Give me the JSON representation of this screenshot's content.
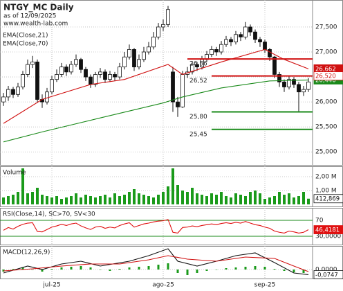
{
  "chart_data": [
    {
      "type": "candlestick",
      "title": "NTGY_MC Daily",
      "subtitle": "as of 12/09/2025",
      "source": "www.wealth-lab.com",
      "categories": [
        null,
        null,
        null,
        null,
        null,
        null,
        null,
        null,
        null,
        null,
        "jul-25",
        null,
        null,
        null,
        null,
        null,
        null,
        null,
        null,
        null,
        null,
        null,
        null,
        null,
        null,
        null,
        null,
        null,
        null,
        null,
        null,
        null,
        null,
        "ago-25",
        null,
        null,
        null,
        null,
        null,
        null,
        null,
        null,
        null,
        null,
        null,
        null,
        null,
        null,
        null,
        null,
        null,
        null,
        null,
        null,
        "sep-25",
        null,
        null,
        null,
        null,
        null,
        null,
        null,
        null,
        null
      ],
      "open": [
        26.0,
        26.1,
        26.25,
        26.15,
        26.3,
        26.55,
        26.75,
        26.8,
        26.05,
        26.0,
        26.2,
        26.45,
        26.55,
        26.7,
        26.6,
        26.75,
        26.85,
        26.65,
        26.5,
        26.35,
        26.55,
        26.6,
        26.45,
        26.55,
        26.5,
        26.7,
        26.9,
        27.05,
        26.7,
        26.85,
        27.0,
        27.1,
        27.3,
        27.5,
        27.55,
        26.6,
        26.0,
        25.9,
        26.55,
        26.6,
        26.75,
        26.7,
        26.85,
        26.95,
        27.05,
        27.0,
        27.15,
        27.25,
        27.2,
        27.35,
        27.3,
        27.5,
        27.4,
        27.25,
        27.2,
        27.05,
        26.9,
        26.55,
        26.4,
        26.3,
        26.45,
        26.35,
        26.2,
        26.25
      ],
      "high": [
        26.18,
        26.32,
        26.3,
        26.38,
        26.62,
        26.85,
        26.92,
        26.85,
        26.15,
        26.28,
        26.52,
        26.65,
        26.78,
        26.75,
        26.82,
        26.95,
        26.88,
        26.7,
        26.55,
        26.6,
        26.68,
        26.65,
        26.62,
        26.6,
        26.78,
        27.0,
        27.15,
        27.08,
        26.95,
        27.1,
        27.2,
        27.4,
        27.58,
        27.65,
        27.92,
        26.7,
        26.1,
        26.62,
        26.7,
        26.82,
        26.8,
        26.92,
        27.02,
        27.12,
        27.1,
        27.22,
        27.32,
        27.3,
        27.42,
        27.4,
        27.6,
        27.55,
        27.45,
        27.3,
        27.25,
        27.08,
        26.92,
        26.6,
        26.45,
        26.52,
        26.5,
        26.4,
        26.32,
        26.48
      ],
      "low": [
        25.92,
        26.02,
        26.08,
        26.1,
        26.25,
        26.5,
        26.68,
        25.98,
        25.88,
        25.95,
        26.15,
        26.4,
        26.5,
        26.52,
        26.55,
        26.7,
        26.58,
        26.42,
        26.28,
        26.3,
        26.48,
        26.38,
        26.4,
        26.42,
        26.45,
        26.65,
        26.85,
        26.62,
        26.65,
        26.8,
        26.95,
        27.05,
        27.25,
        27.42,
        27.5,
        25.8,
        25.7,
        25.88,
        26.48,
        26.55,
        26.62,
        26.65,
        26.8,
        26.9,
        26.92,
        26.95,
        27.1,
        27.12,
        27.15,
        27.22,
        27.25,
        27.32,
        27.18,
        27.1,
        26.98,
        26.82,
        26.48,
        26.3,
        26.2,
        26.25,
        26.28,
        25.8,
        26.12,
        26.2
      ],
      "close": [
        26.1,
        26.25,
        26.15,
        26.3,
        26.55,
        26.75,
        26.8,
        26.05,
        26.0,
        26.2,
        26.45,
        26.55,
        26.7,
        26.6,
        26.75,
        26.85,
        26.65,
        26.5,
        26.35,
        26.55,
        26.6,
        26.45,
        26.55,
        26.5,
        26.7,
        26.9,
        27.05,
        26.7,
        26.85,
        27.0,
        27.1,
        27.3,
        27.5,
        27.55,
        27.85,
        26.0,
        25.9,
        26.55,
        26.6,
        26.75,
        26.7,
        26.85,
        26.95,
        27.05,
        27.0,
        27.15,
        27.25,
        27.2,
        27.35,
        27.3,
        27.5,
        27.4,
        27.25,
        27.2,
        27.05,
        26.9,
        26.55,
        26.4,
        26.3,
        26.45,
        26.35,
        26.2,
        26.25,
        26.4
      ],
      "series": [
        {
          "name": "EMA(Close,21)",
          "color": "#d01010",
          "x": [
            0,
            8,
            18,
            25,
            34,
            37,
            45,
            54,
            58,
            63
          ],
          "values": [
            25.57,
            26.05,
            26.35,
            26.45,
            26.75,
            26.55,
            26.8,
            27.05,
            26.85,
            26.662
          ],
          "last_label": "26,662"
        },
        {
          "name": "EMA(Close,70)",
          "color": "#1a8a1a",
          "x": [
            0,
            8,
            20,
            33,
            37,
            45,
            55,
            63
          ],
          "values": [
            25.2,
            25.4,
            25.68,
            25.98,
            26.1,
            26.28,
            26.42,
            26.44
          ],
          "last_label": "26,440"
        }
      ],
      "levels": [
        {
          "value": 26.86,
          "label": "26,86",
          "color": "#d01010",
          "start": 38
        },
        {
          "value": 26.52,
          "label": "26,52",
          "color": "#d01010",
          "start": 43,
          "last_label": "26,520"
        },
        {
          "value": 25.8,
          "label": "25,80",
          "color": "#1a8a1a",
          "start": 43
        },
        {
          "value": 25.45,
          "label": "25,45",
          "color": "#1a8a1a",
          "start": 43
        }
      ],
      "ylim": [
        24.74,
        28.04
      ],
      "yticks": [
        {
          "value": 25,
          "label": "25,000"
        },
        {
          "value": 25.5,
          "label": "25,500"
        },
        {
          "value": 26,
          "label": "26,000"
        },
        {
          "value": 26.5,
          "label": "26,500"
        },
        {
          "value": 27,
          "label": "27,000"
        },
        {
          "value": 27.5,
          "label": "27,500"
        }
      ],
      "grid": true
    },
    {
      "type": "bar",
      "title": "Volume",
      "color": "#1a9a1a",
      "values": [
        0.5,
        0.6,
        0.7,
        0.9,
        2.6,
        0.8,
        0.9,
        1.2,
        0.7,
        0.6,
        0.5,
        0.6,
        0.4,
        0.5,
        0.6,
        0.8,
        0.5,
        0.7,
        0.6,
        0.5,
        0.6,
        0.7,
        0.5,
        0.8,
        0.6,
        0.7,
        0.9,
        1.1,
        0.8,
        0.7,
        0.6,
        0.5,
        0.7,
        0.9,
        1.3,
        2.6,
        1.4,
        1.0,
        0.9,
        1.2,
        0.8,
        0.7,
        0.6,
        0.8,
        0.7,
        0.9,
        0.6,
        0.5,
        0.8,
        0.7,
        0.6,
        0.9,
        1.0,
        0.8,
        0.4,
        0.5,
        0.6,
        0.9,
        0.7,
        0.8,
        0.5,
        0.6,
        0.9,
        0.412869
      ],
      "last_label": "412,869",
      "ylim": [
        -0.15,
        2.75
      ],
      "yticks": [
        {
          "value": 1,
          "label": "1,00 M"
        },
        {
          "value": 2,
          "label": "2,00 M"
        }
      ],
      "grid": true
    },
    {
      "type": "line",
      "title": "RSI(Close,14), SC>70, SV<30",
      "color": "#e01010",
      "grid_color": "#1a8a1a",
      "values": [
        45,
        52,
        48,
        55,
        60,
        63,
        64,
        42,
        41,
        47,
        53,
        56,
        60,
        57,
        61,
        63,
        56,
        51,
        47,
        53,
        55,
        50,
        53,
        51,
        57,
        61,
        64,
        53,
        57,
        61,
        63,
        66,
        68,
        69,
        72,
        40,
        38,
        52,
        53,
        56,
        54,
        57,
        59,
        61,
        59,
        62,
        64,
        62,
        65,
        63,
        67,
        63,
        59,
        57,
        53,
        50,
        43,
        40,
        38,
        43,
        41,
        38,
        40,
        46.4181
      ],
      "last_label": "46,4181",
      "ylim": [
        9.1,
        101.3
      ],
      "yticks": [
        70,
        {
          "value": 30,
          "label": "30,0000"
        }
      ],
      "grid": true
    },
    {
      "type": "macd",
      "title": "MACD(12,26,9)",
      "series": [
        {
          "color": "#111111",
          "x": [
            0,
            5,
            8,
            12,
            16,
            20,
            26,
            30,
            34,
            36,
            40,
            44,
            48,
            52,
            56,
            60,
            63
          ],
          "values": [
            -0.05,
            0.05,
            0.0,
            0.08,
            0.12,
            0.05,
            0.12,
            0.2,
            0.3,
            0.12,
            0.05,
            0.12,
            0.2,
            0.24,
            0.1,
            -0.05,
            -0.0747
          ],
          "last_label": "-0,0747"
        },
        {
          "color": "#d01010",
          "x": [
            0,
            6,
            12,
            18,
            24,
            30,
            34,
            38,
            44,
            50,
            56,
            60,
            63
          ],
          "values": [
            -0.02,
            0.01,
            0.05,
            0.08,
            0.08,
            0.14,
            0.2,
            0.15,
            0.12,
            0.18,
            0.16,
            0.05,
            -0.03
          ]
        }
      ],
      "histogram": {
        "color": "#1a9a1a",
        "x": [
          0,
          2,
          4,
          6,
          8,
          10,
          12,
          14,
          16,
          18,
          20,
          22,
          24,
          26,
          28,
          30,
          32,
          34,
          36,
          38,
          40,
          42,
          44,
          46,
          48,
          50,
          52,
          54,
          56,
          58,
          60,
          62
        ],
        "values": [
          -0.03,
          0.01,
          0.03,
          0.0,
          -0.03,
          0.01,
          0.03,
          0.04,
          0.05,
          0.03,
          0.0,
          -0.02,
          0.01,
          0.03,
          0.04,
          0.05,
          0.07,
          0.09,
          -0.05,
          -0.08,
          -0.05,
          -0.02,
          0.0,
          0.02,
          0.03,
          0.04,
          0.05,
          0.04,
          0.01,
          -0.02,
          -0.04,
          -0.05
        ]
      },
      "ylim": [
        -0.13,
        0.34
      ],
      "yticks": [
        {
          "value": 0,
          "label": "0,0000"
        }
      ],
      "grid": true
    }
  ]
}
